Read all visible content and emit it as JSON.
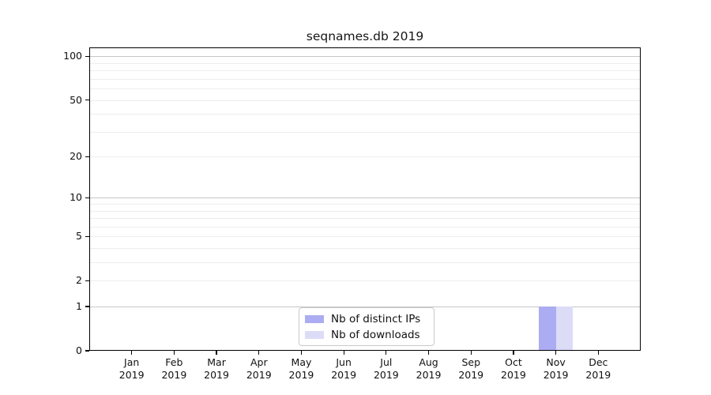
{
  "figure": {
    "background": "#ffffff"
  },
  "chart_data": {
    "type": "bar",
    "title": "seqnames.db 2019",
    "categories": [
      "Jan",
      "Feb",
      "Mar",
      "Apr",
      "May",
      "Jun",
      "Jul",
      "Aug",
      "Sep",
      "Oct",
      "Nov",
      "Dec"
    ],
    "x_sublabel": "2019",
    "series": [
      {
        "name": "Nb of distinct IPs",
        "color": "#acacf2",
        "values": [
          0,
          0,
          0,
          0,
          0,
          0,
          0,
          0,
          0,
          0,
          1,
          0
        ]
      },
      {
        "name": "Nb of downloads",
        "color": "#dcdcf7",
        "values": [
          0,
          0,
          0,
          0,
          0,
          0,
          0,
          0,
          0,
          0,
          1,
          0
        ]
      }
    ],
    "yscale": "log1p",
    "ylim": [
      0,
      115
    ],
    "yticks": [
      0,
      1,
      2,
      5,
      10,
      20,
      50,
      100
    ],
    "major_gridlines": [
      1,
      10,
      100
    ],
    "minor_gridlines": [
      2,
      3,
      4,
      5,
      6,
      7,
      8,
      9,
      20,
      30,
      40,
      50,
      60,
      70,
      80,
      90
    ],
    "grid": "on",
    "legend_position": "bottom-center",
    "colors": {
      "grid_major": "#c6c6c6",
      "grid_minor": "#ededed",
      "axis": "#000000",
      "legend_border": "#c9c9c9",
      "text": "#111111"
    }
  }
}
